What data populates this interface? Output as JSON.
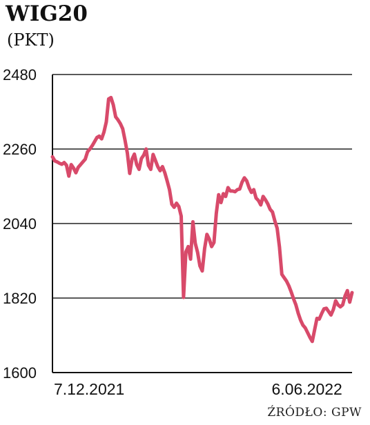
{
  "header": {
    "title": "WIG20",
    "subtitle": "(PKT)"
  },
  "footer": {
    "source": "ŹRÓDŁO: GPW"
  },
  "colors": {
    "line": "#d84a6a",
    "grid": "#222222",
    "axis": "#111111"
  },
  "chart_data": {
    "type": "line",
    "title": "WIG20",
    "ylabel": "(PKT)",
    "xlabel": "",
    "ylim": [
      1600,
      2480
    ],
    "yticks": [
      2480,
      2260,
      2040,
      1820,
      1600
    ],
    "grid": true,
    "xtick_labels": [
      {
        "label": "7.12.2021",
        "index": 0
      },
      {
        "label": "6.06.2022",
        "index": 125
      }
    ],
    "series": [
      {
        "values": [
          2237,
          2225,
          2222,
          2218,
          2215,
          2220,
          2212,
          2180,
          2214,
          2204,
          2190,
          2206,
          2214,
          2222,
          2230,
          2252,
          2260,
          2270,
          2282,
          2294,
          2298,
          2290,
          2310,
          2340,
          2408,
          2412,
          2390,
          2355,
          2346,
          2335,
          2320,
          2286,
          2248,
          2188,
          2230,
          2245,
          2214,
          2200,
          2232,
          2242,
          2260,
          2212,
          2200,
          2244,
          2226,
          2208,
          2196,
          2208,
          2190,
          2166,
          2140,
          2097,
          2088,
          2100,
          2090,
          2062,
          1822,
          1956,
          1972,
          1935,
          2045,
          1982,
          1955,
          1915,
          1900,
          1966,
          2008,
          1994,
          1972,
          1984,
          2070,
          2125,
          2102,
          2128,
          2120,
          2146,
          2136,
          2136,
          2134,
          2140,
          2142,
          2162,
          2175,
          2166,
          2146,
          2132,
          2140,
          2115,
          2108,
          2095,
          2120,
          2110,
          2098,
          2082,
          2074,
          2048,
          2026,
          1970,
          1890,
          1880,
          1870,
          1856,
          1838,
          1818,
          1800,
          1775,
          1755,
          1740,
          1732,
          1718,
          1704,
          1692,
          1726,
          1760,
          1758,
          1774,
          1788,
          1790,
          1780,
          1770,
          1786,
          1812,
          1800,
          1794,
          1800,
          1826,
          1842,
          1808,
          1836
        ]
      }
    ]
  }
}
